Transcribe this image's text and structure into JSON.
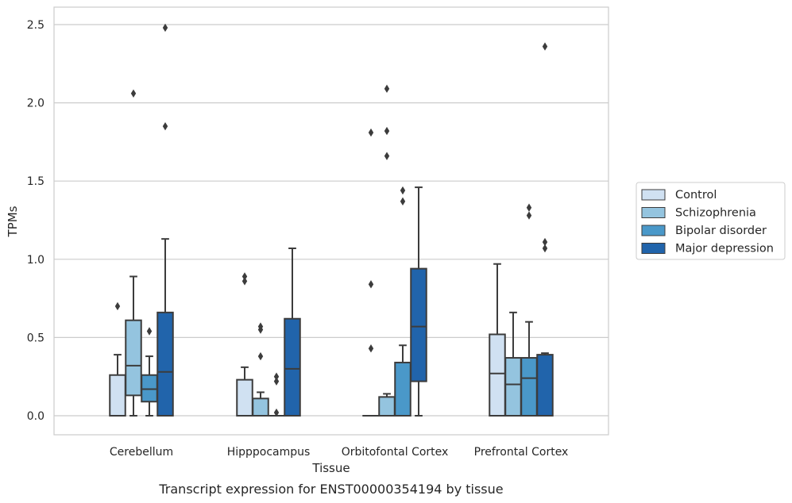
{
  "chart_data": {
    "type": "box",
    "xlabel": "Tissue",
    "ylabel": "TPMs",
    "caption": "Transcript expression for ENST00000354194 by tissue",
    "ylim": [
      -0.12,
      2.62
    ],
    "yticks": [
      "0.0",
      "0.5",
      "1.0",
      "1.5",
      "2.0",
      "2.5"
    ],
    "grid": "horizontal",
    "legend_position": "right",
    "categories": [
      "Cerebellum",
      "Hipppocampus",
      "Orbitofontal Cortex",
      "Prefrontal Cortex"
    ],
    "series": [
      {
        "name": "Control",
        "color": "#d0e1f2",
        "boxes": [
          {
            "min": 0,
            "q1": 0,
            "median": 0,
            "q3": 0.26,
            "max": 0.39,
            "outliers": [
              0.7
            ]
          },
          {
            "min": 0,
            "q1": 0,
            "median": 0,
            "q3": 0.23,
            "max": 0.31,
            "outliers": [
              0.86,
              0.89
            ]
          },
          {
            "min": 0,
            "q1": 0,
            "median": 0,
            "q3": 0,
            "max": 0,
            "outliers": [
              0.43,
              0.84,
              1.81
            ]
          },
          {
            "min": 0,
            "q1": 0,
            "median": 0.27,
            "q3": 0.52,
            "max": 0.97,
            "outliers": []
          }
        ]
      },
      {
        "name": "Schizophrenia",
        "color": "#94c4df",
        "boxes": [
          {
            "min": 0,
            "q1": 0.13,
            "median": 0.32,
            "q3": 0.61,
            "max": 0.89,
            "outliers": [
              2.06
            ]
          },
          {
            "min": 0,
            "q1": 0,
            "median": 0,
            "q3": 0.11,
            "max": 0.15,
            "outliers": [
              0.38,
              0.55,
              0.57
            ]
          },
          {
            "min": 0,
            "q1": 0,
            "median": 0,
            "q3": 0.12,
            "max": 0.14,
            "outliers": [
              1.66,
              1.82,
              2.09
            ]
          },
          {
            "min": 0,
            "q1": 0,
            "median": 0.2,
            "q3": 0.37,
            "max": 0.66,
            "outliers": []
          }
        ]
      },
      {
        "name": "Bipolar disorder",
        "color": "#4a98c9",
        "boxes": [
          {
            "min": 0,
            "q1": 0.09,
            "median": 0.17,
            "q3": 0.26,
            "max": 0.38,
            "outliers": [
              0.54
            ]
          },
          {
            "min": 0,
            "q1": 0,
            "median": 0,
            "q3": 0,
            "max": 0,
            "outliers": [
              0.02,
              0.22,
              0.25
            ]
          },
          {
            "min": 0,
            "q1": 0,
            "median": 0,
            "q3": 0.34,
            "max": 0.45,
            "outliers": [
              1.37,
              1.44
            ]
          },
          {
            "min": 0,
            "q1": 0,
            "median": 0.24,
            "q3": 0.37,
            "max": 0.6,
            "outliers": [
              1.28,
              1.33
            ]
          }
        ]
      },
      {
        "name": "Major depression",
        "color": "#2164ab",
        "boxes": [
          {
            "min": 0,
            "q1": 0,
            "median": 0.28,
            "q3": 0.66,
            "max": 1.13,
            "outliers": [
              1.85,
              2.48
            ]
          },
          {
            "min": 0,
            "q1": 0,
            "median": 0.3,
            "q3": 0.62,
            "max": 1.07,
            "outliers": []
          },
          {
            "min": 0,
            "q1": 0.22,
            "median": 0.57,
            "q3": 0.94,
            "max": 1.46,
            "outliers": []
          },
          {
            "min": 0,
            "q1": 0,
            "median": 0,
            "q3": 0.39,
            "max": 0.4,
            "outliers": [
              1.07,
              1.11,
              2.36
            ]
          }
        ]
      }
    ]
  }
}
